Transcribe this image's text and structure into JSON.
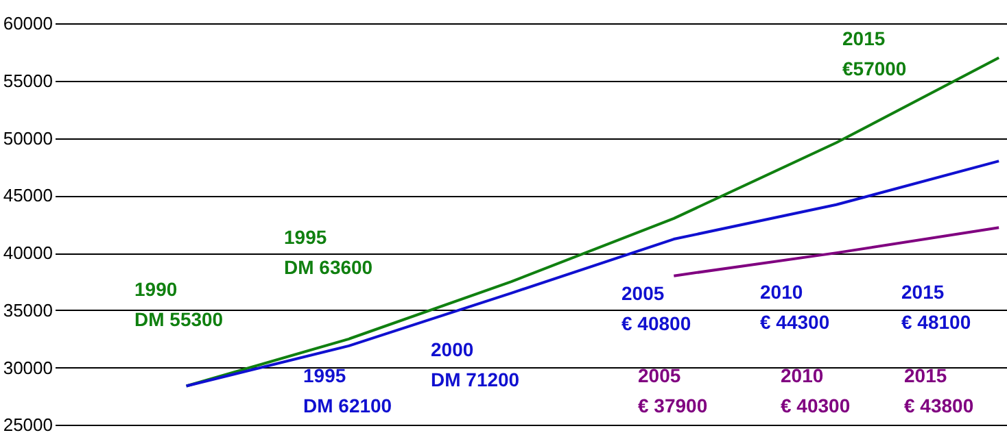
{
  "chart_data": {
    "type": "line",
    "categories": [
      null,
      null,
      null,
      null,
      null,
      null
    ],
    "series": [
      {
        "color": "#108010",
        "values": [
          28400,
          32500,
          37500,
          43000,
          49600,
          57000
        ]
      },
      {
        "color": "#1010d0",
        "values": [
          28400,
          31900,
          36500,
          41200,
          44200,
          48000
        ]
      },
      {
        "color": "#800080",
        "values": [
          null,
          null,
          null,
          38000,
          40000,
          42200
        ]
      }
    ],
    "annotations": [
      "1990\nDM 55300",
      "1995\nDM 63600",
      "2015\n€57000",
      "1995\nDM 62100",
      "2000\nDM 71200",
      "2005\n€ 40800",
      "2010\n€ 44300",
      "2015\n€ 48100",
      "2005\n€ 37900",
      "2010\n€ 40300",
      "2015\n€ 43800"
    ],
    "ylim": [
      23000,
      60000
    ],
    "yticks": [
      25000,
      30000,
      35000,
      40000,
      45000,
      50000,
      55000,
      60000
    ],
    "grid": "y",
    "tick_labels": "y",
    "marker": "none",
    "line_style": "solid"
  }
}
